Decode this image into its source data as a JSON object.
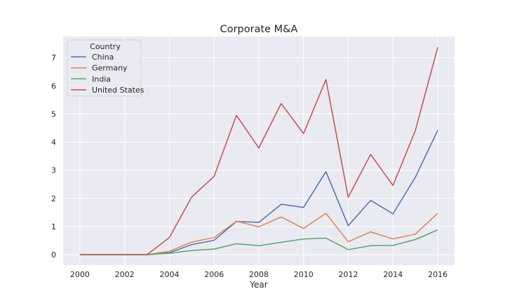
{
  "chart_data": {
    "type": "line",
    "title": "Corporate M&A",
    "xlabel": "Year",
    "ylabel": "",
    "x": [
      2000,
      2001,
      2002,
      2003,
      2004,
      2005,
      2006,
      2007,
      2008,
      2009,
      2010,
      2011,
      2012,
      2013,
      2014,
      2015,
      2016
    ],
    "xlim": [
      1999.25,
      2016.75
    ],
    "ylim": [
      -0.37,
      7.75
    ],
    "x_ticks": [
      2000,
      2002,
      2004,
      2006,
      2008,
      2010,
      2012,
      2014,
      2016
    ],
    "x_tick_labels": [
      "2000",
      "2002",
      "2004",
      "2006",
      "2008",
      "2010",
      "2012",
      "2014",
      "2016"
    ],
    "y_ticks": [
      0,
      1,
      2,
      3,
      4,
      5,
      6,
      7
    ],
    "y_tick_labels": [
      "0",
      "1",
      "2",
      "3",
      "4",
      "5",
      "6",
      "7"
    ],
    "grid": true,
    "legend_title": "Country",
    "legend_position": "top-left",
    "series": [
      {
        "name": "China",
        "color": "#4c72b0",
        "values": [
          0,
          0,
          0,
          0,
          0.07,
          0.36,
          0.51,
          1.18,
          1.15,
          1.79,
          1.68,
          2.95,
          1.03,
          1.93,
          1.45,
          2.75,
          4.42
        ]
      },
      {
        "name": "Germany",
        "color": "#dd8452",
        "values": [
          0,
          0,
          0,
          0,
          0.12,
          0.45,
          0.61,
          1.19,
          0.99,
          1.34,
          0.93,
          1.47,
          0.46,
          0.81,
          0.56,
          0.73,
          1.47
        ]
      },
      {
        "name": "India",
        "color": "#55a868",
        "values": [
          0,
          0,
          0,
          0,
          0.05,
          0.15,
          0.2,
          0.39,
          0.32,
          0.44,
          0.56,
          0.59,
          0.18,
          0.32,
          0.33,
          0.54,
          0.88
        ]
      },
      {
        "name": "United States",
        "color": "#c44e52",
        "values": [
          0,
          0,
          0,
          0,
          0.61,
          2.05,
          2.78,
          4.95,
          3.79,
          5.37,
          4.3,
          6.22,
          2.04,
          3.56,
          2.46,
          4.41,
          7.37
        ]
      }
    ]
  }
}
